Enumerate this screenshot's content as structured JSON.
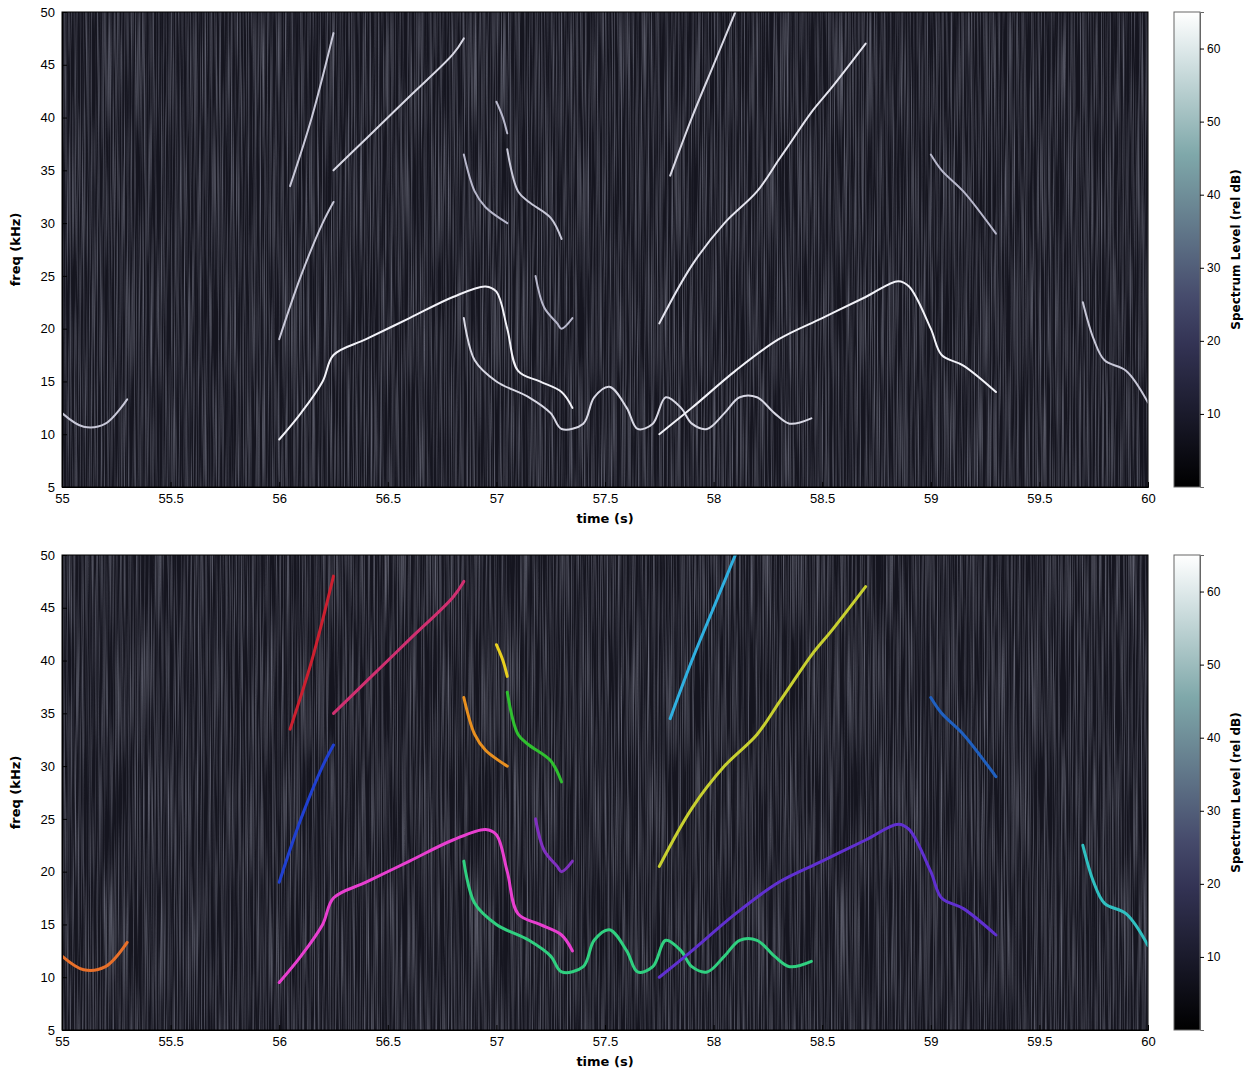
{
  "chart_data": [
    {
      "type": "line",
      "x_label": "time (s)",
      "y_label": "freq (kHz)",
      "xlim": [
        55,
        60
      ],
      "xticks": [
        55,
        55.5,
        56,
        56.5,
        57,
        57.5,
        58,
        58.5,
        59,
        59.5,
        60
      ],
      "ylim": [
        5,
        50
      ],
      "yticks": [
        5,
        10,
        15,
        20,
        25,
        30,
        35,
        40,
        45,
        50
      ],
      "colorbar": {
        "label": "Spectrum Level (rel dB)",
        "range": [
          0,
          65
        ],
        "ticks": [
          10,
          20,
          30,
          40,
          50,
          60
        ]
      },
      "series": [
        {
          "color": "#c8c8d8",
          "x": [
            55,
            55.1,
            55.2,
            55.3
          ],
          "values": [
            12,
            10.7,
            11,
            13.3
          ]
        },
        {
          "color": "#f2f2f8",
          "x": [
            56,
            56.1,
            56.2,
            56.25,
            56.4,
            56.6,
            56.8,
            56.95,
            57,
            57.05,
            57.1,
            57.2,
            57.3,
            57.35
          ],
          "values": [
            9.5,
            12,
            15,
            17.5,
            19,
            21,
            23,
            24,
            23.5,
            20,
            16,
            15,
            14,
            12.5
          ]
        },
        {
          "color": "#c8c8d8",
          "x": [
            56.05,
            56.15,
            56.25
          ],
          "values": [
            33.5,
            40,
            48
          ]
        },
        {
          "color": "#c8c8d8",
          "x": [
            56,
            56.1,
            56.2,
            56.25
          ],
          "values": [
            19,
            25,
            30,
            32
          ]
        },
        {
          "color": "#d8d8e4",
          "x": [
            56.25,
            56.4,
            56.6,
            56.8,
            56.85
          ],
          "values": [
            35,
            38,
            42,
            46,
            47.5
          ]
        },
        {
          "color": "#b8b8cc",
          "x": [
            56.85,
            56.9,
            56.95,
            57.05
          ],
          "values": [
            36.5,
            33,
            31.5,
            30
          ]
        },
        {
          "color": "#b8b8cc",
          "x": [
            57,
            57.03,
            57.05
          ],
          "values": [
            41.5,
            40,
            38.5
          ]
        },
        {
          "color": "#c8c8d8",
          "x": [
            57.05,
            57.1,
            57.15,
            57.25,
            57.3
          ],
          "values": [
            37,
            33,
            32,
            30.5,
            28.5
          ]
        },
        {
          "color": "#b8b8cc",
          "x": [
            57.18,
            57.22,
            57.28,
            57.3,
            57.35
          ],
          "values": [
            25,
            22,
            20.5,
            20,
            21
          ]
        },
        {
          "color": "#d8d8e4",
          "x": [
            56.85,
            56.9,
            57,
            57.15,
            57.25,
            57.3,
            57.4,
            57.45,
            57.52,
            57.6,
            57.65,
            57.72,
            57.78,
            57.85,
            57.9,
            57.97,
            58.05,
            58.12,
            58.2,
            58.28,
            58.35,
            58.45
          ],
          "values": [
            21,
            17,
            15,
            13.5,
            12,
            10.5,
            11,
            13.5,
            14.5,
            12.5,
            10.5,
            11,
            13.5,
            12.5,
            11,
            10.5,
            12,
            13.5,
            13.5,
            12,
            11,
            11.5
          ]
        },
        {
          "color": "#d8d8e4",
          "x": [
            57.8,
            57.9,
            58,
            58.1
          ],
          "values": [
            34.5,
            40,
            45,
            50
          ]
        },
        {
          "color": "#e4e4ee",
          "x": [
            57.75,
            57.9,
            58.05,
            58.2,
            58.3,
            58.35,
            58.45,
            58.55,
            58.7
          ],
          "values": [
            20.5,
            26,
            30,
            33,
            36,
            37.5,
            40.5,
            43,
            47
          ]
        },
        {
          "color": "#f2f2f8",
          "x": [
            57.75,
            57.9,
            58.1,
            58.3,
            58.5,
            58.7,
            58.85,
            58.9,
            59,
            59.05,
            59.15,
            59.3
          ],
          "values": [
            10,
            12.5,
            16,
            19,
            21,
            23,
            24.5,
            24,
            20,
            17.5,
            16.5,
            14
          ]
        },
        {
          "color": "#b8b8cc",
          "x": [
            59,
            59.05,
            59.15,
            59.3
          ],
          "values": [
            36.5,
            35,
            33,
            29
          ]
        },
        {
          "color": "#c8c8d8",
          "x": [
            59.7,
            59.75,
            59.8,
            59.9,
            60
          ],
          "values": [
            22.5,
            19,
            17,
            16,
            13
          ]
        }
      ]
    },
    {
      "type": "line",
      "x_label": "time (s)",
      "y_label": "freq (kHz)",
      "xlim": [
        55,
        60
      ],
      "xticks": [
        55,
        55.5,
        56,
        56.5,
        57,
        57.5,
        58,
        58.5,
        59,
        59.5,
        60
      ],
      "ylim": [
        5,
        50
      ],
      "yticks": [
        5,
        10,
        15,
        20,
        25,
        30,
        35,
        40,
        45,
        50
      ],
      "colorbar": {
        "label": "Spectrum Level (rel dB)",
        "range": [
          0,
          65
        ],
        "ticks": [
          10,
          20,
          30,
          40,
          50,
          60
        ]
      },
      "series": [
        {
          "color": "#e8702a",
          "x": [
            55,
            55.1,
            55.2,
            55.3
          ],
          "values": [
            12,
            10.7,
            11,
            13.3
          ]
        },
        {
          "color": "#e83fd0",
          "x": [
            56,
            56.1,
            56.2,
            56.25,
            56.4,
            56.6,
            56.8,
            56.95,
            57,
            57.05,
            57.1,
            57.2,
            57.3,
            57.35
          ],
          "values": [
            9.5,
            12,
            15,
            17.5,
            19,
            21,
            23,
            24,
            23.5,
            20,
            16,
            15,
            14,
            12.5
          ]
        },
        {
          "color": "#cc2030",
          "x": [
            56.05,
            56.15,
            56.25
          ],
          "values": [
            33.5,
            40,
            48
          ]
        },
        {
          "color": "#2040d0",
          "x": [
            56,
            56.1,
            56.2,
            56.25
          ],
          "values": [
            19,
            25,
            30,
            32
          ]
        },
        {
          "color": "#d03070",
          "x": [
            56.25,
            56.4,
            56.6,
            56.8,
            56.85
          ],
          "values": [
            35,
            38,
            42,
            46,
            47.5
          ]
        },
        {
          "color": "#e89020",
          "x": [
            56.85,
            56.9,
            56.95,
            57.05
          ],
          "values": [
            36.5,
            33,
            31.5,
            30
          ]
        },
        {
          "color": "#e8d020",
          "x": [
            57,
            57.03,
            57.05
          ],
          "values": [
            41.5,
            40,
            38.5
          ]
        },
        {
          "color": "#30c030",
          "x": [
            57.05,
            57.1,
            57.15,
            57.25,
            57.3
          ],
          "values": [
            37,
            33,
            32,
            30.5,
            28.5
          ]
        },
        {
          "color": "#8030c0",
          "x": [
            57.18,
            57.22,
            57.28,
            57.3,
            57.35
          ],
          "values": [
            25,
            22,
            20.5,
            20,
            21
          ]
        },
        {
          "color": "#30d080",
          "x": [
            56.85,
            56.9,
            57,
            57.15,
            57.25,
            57.3,
            57.4,
            57.45,
            57.52,
            57.6,
            57.65,
            57.72,
            57.78,
            57.85,
            57.9,
            57.97,
            58.05,
            58.12,
            58.2,
            58.28,
            58.35,
            58.45
          ],
          "values": [
            21,
            17,
            15,
            13.5,
            12,
            10.5,
            11,
            13.5,
            14.5,
            12.5,
            10.5,
            11,
            13.5,
            12.5,
            11,
            10.5,
            12,
            13.5,
            13.5,
            12,
            11,
            11.5
          ]
        },
        {
          "color": "#30b0e0",
          "x": [
            57.8,
            57.9,
            58,
            58.1
          ],
          "values": [
            34.5,
            40,
            45,
            50
          ]
        },
        {
          "color": "#c8d030",
          "x": [
            57.75,
            57.9,
            58.05,
            58.2,
            58.3,
            58.35,
            58.45,
            58.55,
            58.7
          ],
          "values": [
            20.5,
            26,
            30,
            33,
            36,
            37.5,
            40.5,
            43,
            47
          ]
        },
        {
          "color": "#6030d0",
          "x": [
            57.75,
            57.9,
            58.1,
            58.3,
            58.5,
            58.7,
            58.85,
            58.9,
            59,
            59.05,
            59.15,
            59.3
          ],
          "values": [
            10,
            12.5,
            16,
            19,
            21,
            23,
            24.5,
            24,
            20,
            17.5,
            16.5,
            14
          ]
        },
        {
          "color": "#2060c0",
          "x": [
            59,
            59.05,
            59.15,
            59.3
          ],
          "values": [
            36.5,
            35,
            33,
            29
          ]
        },
        {
          "color": "#30c0c0",
          "x": [
            59.7,
            59.75,
            59.8,
            59.9,
            60
          ],
          "values": [
            22.5,
            19,
            17,
            16,
            13
          ]
        }
      ]
    }
  ]
}
